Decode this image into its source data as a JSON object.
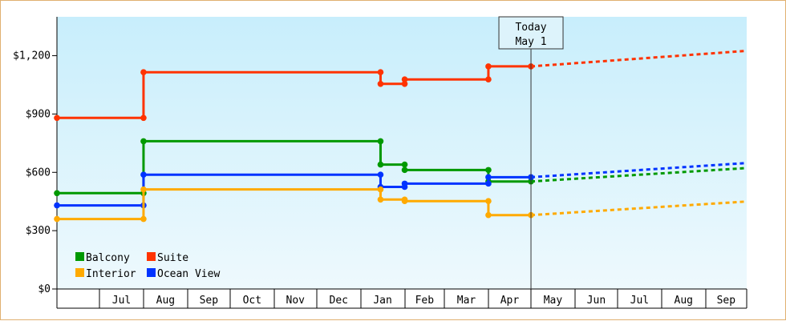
{
  "chart_data": {
    "type": "line",
    "title": "",
    "xlabel": "",
    "ylabel": "",
    "ylim": [
      0,
      1400
    ],
    "yticks": [
      0,
      300,
      600,
      900,
      1200
    ],
    "ytick_labels": [
      "$0",
      "$300",
      "$600",
      "$900",
      "$1,200"
    ],
    "xlim": [
      "2023-06-01",
      "2023-09-30"
    ],
    "xtick_labels": [
      {
        "label": "Jul",
        "start": "2022-07-01",
        "end": "2022-08-01"
      },
      {
        "label": "Aug",
        "start": "2022-08-01",
        "end": "2022-09-01"
      },
      {
        "label": "Sep",
        "start": "2022-09-01",
        "end": "2022-10-01"
      },
      {
        "label": "Oct",
        "start": "2022-10-01",
        "end": "2022-11-01"
      },
      {
        "label": "Nov",
        "start": "2022-11-01",
        "end": "2022-12-01"
      },
      {
        "label": "Dec",
        "start": "2022-12-01",
        "end": "2023-01-01"
      },
      {
        "label": "Jan",
        "start": "2023-01-01",
        "end": "2023-02-01"
      },
      {
        "label": "Feb",
        "start": "2023-02-01",
        "end": "2023-03-01"
      },
      {
        "label": "Mar",
        "start": "2023-03-01",
        "end": "2023-04-01"
      },
      {
        "label": "Apr",
        "start": "2023-04-01",
        "end": "2023-05-01"
      },
      {
        "label": "May",
        "start": "2023-05-01",
        "end": "2023-06-01"
      },
      {
        "label": "Jun",
        "start": "2023-06-01",
        "end": "2023-07-01"
      },
      {
        "label": "Jul",
        "start": "2023-07-01",
        "end": "2023-08-01"
      },
      {
        "label": "Aug",
        "start": "2023-08-01",
        "end": "2023-09-01"
      },
      {
        "label": "Sep",
        "start": "2023-09-01",
        "end": "2023-10-01"
      }
    ],
    "x_start": "2022-06-01",
    "x_end": "2023-09-30",
    "today": {
      "date": "2023-05-01",
      "line1": "Today",
      "line2": "May 1"
    },
    "grid": false,
    "legend_position": "bottom-left",
    "series": [
      {
        "name": "Suite",
        "color": "#ff3300",
        "points": [
          [
            "2022-06-01",
            880
          ],
          [
            "2022-08-01",
            880
          ],
          [
            "2022-08-01",
            1115
          ],
          [
            "2023-01-15",
            1115
          ],
          [
            "2023-01-15",
            1055
          ],
          [
            "2023-02-01",
            1055
          ],
          [
            "2023-02-01",
            1078
          ],
          [
            "2023-04-01",
            1078
          ],
          [
            "2023-04-01",
            1145
          ],
          [
            "2023-05-01",
            1145
          ]
        ],
        "forecast": [
          [
            "2023-05-01",
            1145
          ],
          [
            "2023-09-30",
            1225
          ]
        ]
      },
      {
        "name": "Balcony",
        "color": "#009900",
        "points": [
          [
            "2022-06-01",
            493
          ],
          [
            "2022-08-01",
            493
          ],
          [
            "2022-08-01",
            760
          ],
          [
            "2023-01-15",
            760
          ],
          [
            "2023-01-15",
            640
          ],
          [
            "2023-02-01",
            640
          ],
          [
            "2023-02-01",
            612
          ],
          [
            "2023-04-01",
            612
          ],
          [
            "2023-04-01",
            553
          ],
          [
            "2023-05-01",
            553
          ]
        ],
        "forecast": [
          [
            "2023-05-01",
            553
          ],
          [
            "2023-09-30",
            622
          ]
        ]
      },
      {
        "name": "Ocean View",
        "color": "#0033ff",
        "points": [
          [
            "2022-06-01",
            430
          ],
          [
            "2022-08-01",
            430
          ],
          [
            "2022-08-01",
            588
          ],
          [
            "2023-01-15",
            588
          ],
          [
            "2023-01-15",
            525
          ],
          [
            "2023-02-01",
            525
          ],
          [
            "2023-02-01",
            542
          ],
          [
            "2023-04-01",
            542
          ],
          [
            "2023-04-01",
            575
          ],
          [
            "2023-05-01",
            575
          ]
        ],
        "forecast": [
          [
            "2023-05-01",
            575
          ],
          [
            "2023-09-30",
            648
          ]
        ]
      },
      {
        "name": "Interior",
        "color": "#ffaa00",
        "points": [
          [
            "2022-06-01",
            360
          ],
          [
            "2022-08-01",
            360
          ],
          [
            "2022-08-01",
            512
          ],
          [
            "2023-01-15",
            512
          ],
          [
            "2023-01-15",
            460
          ],
          [
            "2023-02-01",
            460
          ],
          [
            "2023-02-01",
            452
          ],
          [
            "2023-04-01",
            452
          ],
          [
            "2023-04-01",
            380
          ],
          [
            "2023-05-01",
            380
          ]
        ],
        "forecast": [
          [
            "2023-05-01",
            380
          ],
          [
            "2023-09-30",
            450
          ]
        ]
      }
    ],
    "legend": [
      {
        "name": "Balcony",
        "color": "#009900"
      },
      {
        "name": "Suite",
        "color": "#ff3300"
      },
      {
        "name": "Interior",
        "color": "#ffaa00"
      },
      {
        "name": "Ocean View",
        "color": "#0033ff"
      }
    ]
  }
}
